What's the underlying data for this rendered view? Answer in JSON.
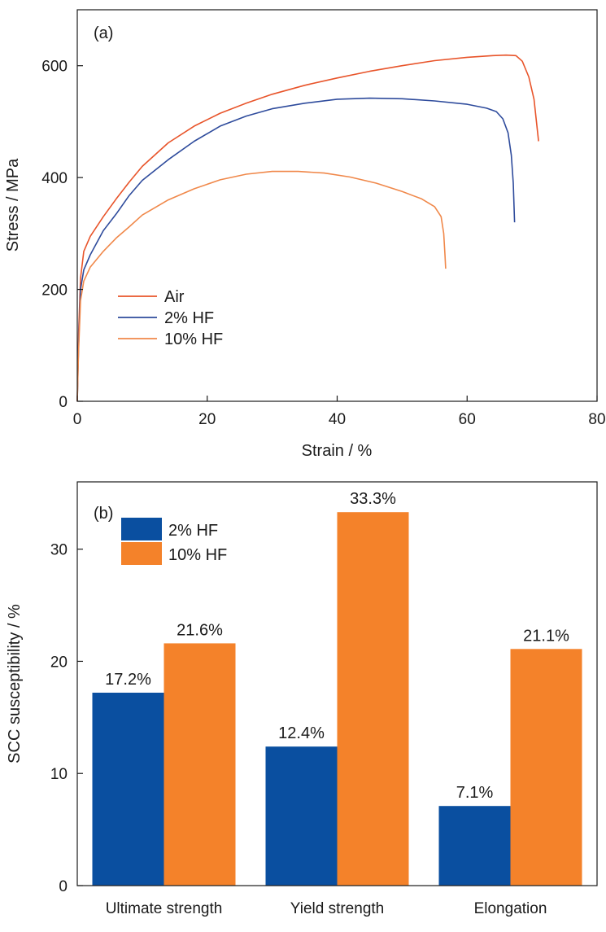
{
  "colors": {
    "air": "#e8542a",
    "hf2": "#2e4b9c",
    "hf10_line": "#f0884a",
    "bar_2hf": "#0a4fa0",
    "bar_10hf": "#f4822a"
  },
  "chart_data": [
    {
      "type": "line",
      "panel_label": "(a)",
      "xlabel": "Strain / %",
      "ylabel": "Stress / MPa",
      "xlim": [
        0,
        80
      ],
      "ylim": [
        0,
        700
      ],
      "xticks": [
        0,
        20,
        40,
        60,
        80
      ],
      "yticks": [
        0,
        200,
        400,
        600
      ],
      "grid": false,
      "legend_position": "lower-left",
      "series": [
        {
          "name": "Air",
          "color": "#e8542a",
          "points": [
            [
              0,
              0
            ],
            [
              0.2,
              120
            ],
            [
              0.5,
              220
            ],
            [
              1,
              268
            ],
            [
              2,
              295
            ],
            [
              4,
              330
            ],
            [
              6,
              362
            ],
            [
              8,
              392
            ],
            [
              10,
              420
            ],
            [
              14,
              462
            ],
            [
              18,
              492
            ],
            [
              22,
              515
            ],
            [
              26,
              533
            ],
            [
              30,
              549
            ],
            [
              35,
              565
            ],
            [
              40,
              578
            ],
            [
              45,
              590
            ],
            [
              50,
              600
            ],
            [
              55,
              609
            ],
            [
              60,
              615
            ],
            [
              64,
              618
            ],
            [
              66,
              619
            ],
            [
              67.5,
              618
            ],
            [
              68.5,
              608
            ],
            [
              69.5,
              580
            ],
            [
              70.3,
              540
            ],
            [
              71,
              465
            ]
          ]
        },
        {
          "name": "2% HF",
          "color": "#2e4b9c",
          "points": [
            [
              0,
              0
            ],
            [
              0.2,
              100
            ],
            [
              0.5,
              200
            ],
            [
              1,
              235
            ],
            [
              2,
              262
            ],
            [
              4,
              305
            ],
            [
              6,
              335
            ],
            [
              8,
              368
            ],
            [
              10,
              395
            ],
            [
              14,
              432
            ],
            [
              18,
              465
            ],
            [
              22,
              492
            ],
            [
              26,
              510
            ],
            [
              30,
              523
            ],
            [
              35,
              533
            ],
            [
              40,
              540
            ],
            [
              45,
              542
            ],
            [
              50,
              541
            ],
            [
              55,
              537
            ],
            [
              60,
              531
            ],
            [
              63,
              524
            ],
            [
              64.5,
              518
            ],
            [
              65.5,
              505
            ],
            [
              66.3,
              480
            ],
            [
              66.8,
              440
            ],
            [
              67.1,
              390
            ],
            [
              67.3,
              320
            ]
          ]
        },
        {
          "name": "10% HF",
          "color": "#f0884a",
          "points": [
            [
              0,
              0
            ],
            [
              0.2,
              90
            ],
            [
              0.5,
              180
            ],
            [
              1,
              215
            ],
            [
              2,
              240
            ],
            [
              4,
              268
            ],
            [
              6,
              292
            ],
            [
              8,
              312
            ],
            [
              10,
              333
            ],
            [
              14,
              360
            ],
            [
              18,
              380
            ],
            [
              22,
              396
            ],
            [
              26,
              406
            ],
            [
              30,
              411
            ],
            [
              34,
              411
            ],
            [
              38,
              408
            ],
            [
              42,
              401
            ],
            [
              46,
              390
            ],
            [
              50,
              375
            ],
            [
              53,
              362
            ],
            [
              55,
              348
            ],
            [
              56,
              330
            ],
            [
              56.4,
              300
            ],
            [
              56.6,
              260
            ],
            [
              56.7,
              237
            ]
          ]
        }
      ]
    },
    {
      "type": "bar",
      "panel_label": "(b)",
      "xlabel": "",
      "ylabel": "SCC susceptibility / %",
      "ylim": [
        0,
        36
      ],
      "yticks": [
        0,
        10,
        20,
        30
      ],
      "grid": false,
      "legend_position": "top-left",
      "categories": [
        "Ultimate strength",
        "Yield strength",
        "Elongation"
      ],
      "series": [
        {
          "name": "2% HF",
          "color": "#0a4fa0",
          "values": [
            17.2,
            12.4,
            7.1
          ],
          "labels": [
            "17.2%",
            "12.4%",
            "7.1%"
          ]
        },
        {
          "name": "10% HF",
          "color": "#f4822a",
          "values": [
            21.6,
            33.3,
            21.1
          ],
          "labels": [
            "21.6%",
            "33.3%",
            "21.1%"
          ]
        }
      ]
    }
  ]
}
